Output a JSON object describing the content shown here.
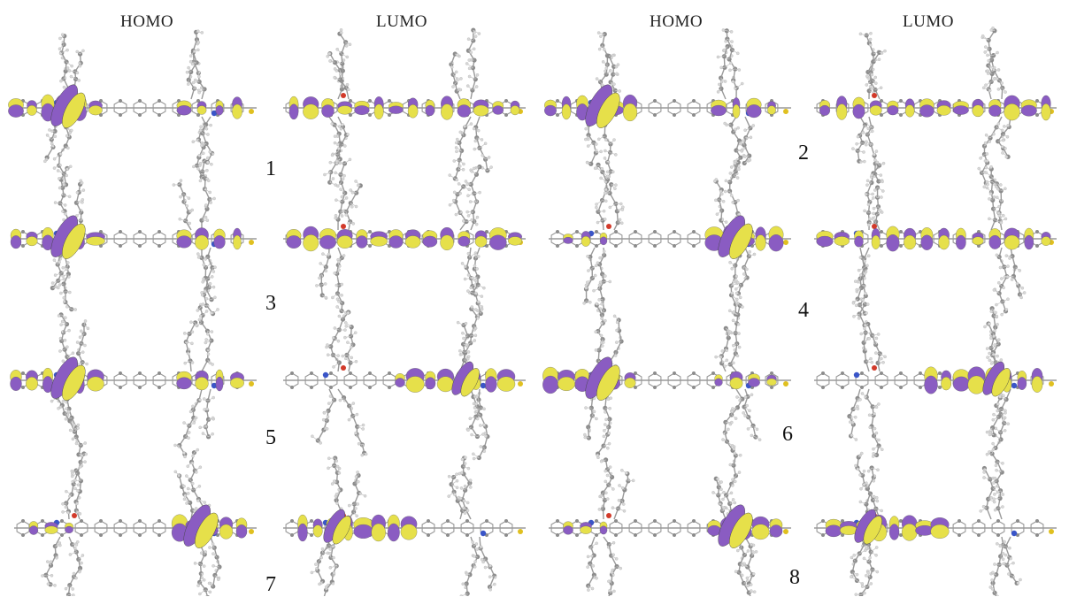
{
  "headers": [
    "HOMO",
    "LUMO",
    "HOMO",
    "LUMO"
  ],
  "compound_labels": [
    "1",
    "2",
    "3",
    "4",
    "5",
    "6",
    "7",
    "8"
  ],
  "colors": {
    "lobe_yellow": "#e6e04a",
    "lobe_purple": "#8a5cc2",
    "atom_carbon": "#8c8c8c",
    "atom_hydrogen": "#d8d8d8",
    "atom_nitrogen": "#3a55c8",
    "atom_oxygen": "#d23a2a",
    "atom_sulfur": "#e0c020"
  }
}
